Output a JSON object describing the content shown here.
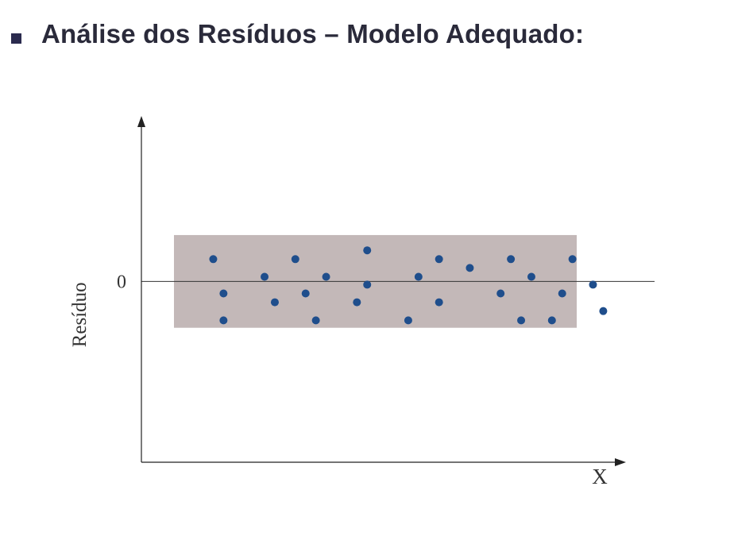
{
  "slide": {
    "title": "Análise dos Resíduos – Modelo Adequado:"
  },
  "chart_data": {
    "type": "scatter",
    "title": "",
    "xlabel": "X",
    "ylabel": "Resíduo",
    "y_tick_labels": [
      "0"
    ],
    "band": {
      "ymin": -1.0,
      "ymax": 1.0,
      "color": "#c3b8b8"
    },
    "zero_line": true,
    "grid": false,
    "point_color": "#1f4e8c",
    "ylim": [
      -3.9,
      3.5
    ],
    "xlim": [
      0,
      1
    ],
    "points": [
      {
        "x": 0.14,
        "y": 0.48
      },
      {
        "x": 0.16,
        "y": -0.26
      },
      {
        "x": 0.16,
        "y": -0.84
      },
      {
        "x": 0.24,
        "y": 0.1
      },
      {
        "x": 0.26,
        "y": -0.45
      },
      {
        "x": 0.3,
        "y": 0.48
      },
      {
        "x": 0.32,
        "y": -0.26
      },
      {
        "x": 0.34,
        "y": -0.84
      },
      {
        "x": 0.36,
        "y": 0.1
      },
      {
        "x": 0.42,
        "y": -0.45
      },
      {
        "x": 0.44,
        "y": 0.67
      },
      {
        "x": 0.44,
        "y": -0.07
      },
      {
        "x": 0.52,
        "y": -0.84
      },
      {
        "x": 0.54,
        "y": 0.1
      },
      {
        "x": 0.58,
        "y": 0.48
      },
      {
        "x": 0.58,
        "y": -0.45
      },
      {
        "x": 0.64,
        "y": 0.29
      },
      {
        "x": 0.7,
        "y": -0.26
      },
      {
        "x": 0.72,
        "y": 0.48
      },
      {
        "x": 0.74,
        "y": -0.84
      },
      {
        "x": 0.76,
        "y": 0.1
      },
      {
        "x": 0.8,
        "y": -0.84
      },
      {
        "x": 0.82,
        "y": -0.26
      },
      {
        "x": 0.84,
        "y": 0.48
      },
      {
        "x": 0.88,
        "y": -0.07
      },
      {
        "x": 0.9,
        "y": -0.64
      }
    ]
  }
}
